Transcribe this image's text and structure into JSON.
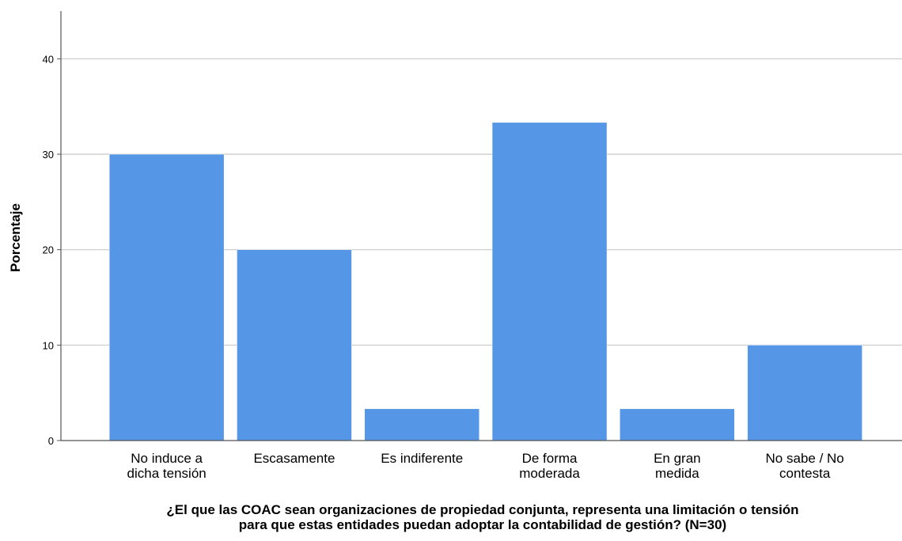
{
  "chart_data": {
    "type": "bar",
    "categories": [
      [
        "No induce a",
        "dicha tensión"
      ],
      [
        "Escasamente"
      ],
      [
        "Es indiferente"
      ],
      [
        "De forma",
        "moderada"
      ],
      [
        "En gran",
        "medida"
      ],
      [
        "No sabe / No",
        "contesta"
      ]
    ],
    "values": [
      30.0,
      20.0,
      3.33,
      33.33,
      3.33,
      10.0
    ],
    "xlabel": [
      "¿El que las COAC sean organizaciones de propiedad conjunta, representa una limitación o tensión",
      "para que estas entidades puedan adoptar la contabilidad de gestión? (N=30)"
    ],
    "ylabel": "Porcentaje",
    "ylim": [
      0,
      45
    ],
    "yticks": [
      0,
      10,
      20,
      30,
      40
    ],
    "grid": true,
    "bar_color": "#5596e6",
    "grid_color": "#c8c8c8",
    "axis_color": "#555555"
  }
}
